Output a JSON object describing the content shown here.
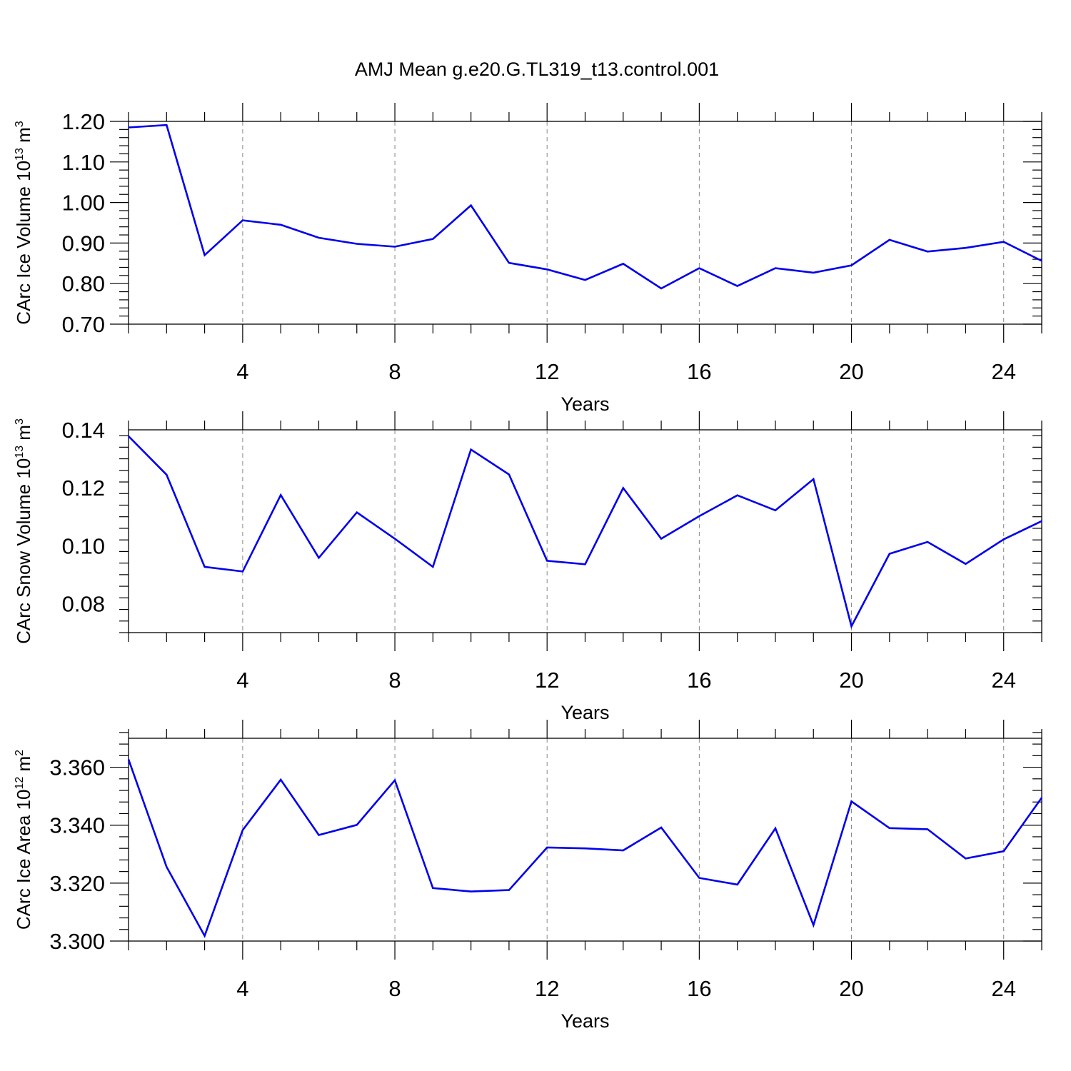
{
  "title": "AMJ Mean g.e20.G.TL319_t13.control.001",
  "colors": {
    "series": "#0000ee",
    "axis": "#000000",
    "grid": "#888888"
  },
  "chart_data": [
    {
      "type": "line",
      "title": "",
      "xlabel": "Years",
      "ylabel": {
        "main": "CArc Ice Volume 10",
        "exp": "13",
        "unit": " m",
        "unit_exp": "3"
      },
      "xlim": [
        1,
        25
      ],
      "ylim": [
        0.7,
        1.2
      ],
      "xticks": [
        4,
        8,
        12,
        16,
        20,
        24
      ],
      "xtick_labels": [
        "4",
        "8",
        "12",
        "16",
        "20",
        "24"
      ],
      "yticks": [
        0.7,
        0.8,
        0.9,
        1.0,
        1.1,
        1.2
      ],
      "ytick_labels": [
        "0.70",
        "0.80",
        "0.90",
        "1.00",
        "1.10",
        "1.20"
      ],
      "grid": "vertical dashed at major x ticks",
      "x": [
        1,
        2,
        3,
        4,
        5,
        6,
        7,
        8,
        9,
        10,
        11,
        12,
        13,
        14,
        15,
        16,
        17,
        18,
        19,
        20,
        21,
        22,
        23,
        24,
        25
      ],
      "values": [
        1.185,
        1.191,
        0.87,
        0.956,
        0.945,
        0.913,
        0.898,
        0.891,
        0.91,
        0.993,
        0.851,
        0.835,
        0.809,
        0.849,
        0.788,
        0.838,
        0.794,
        0.838,
        0.827,
        0.845,
        0.908,
        0.879,
        0.888,
        0.903,
        0.856
      ]
    },
    {
      "type": "line",
      "title": "",
      "xlabel": "Years",
      "ylabel": {
        "main": "CArc Snow Volume 10",
        "exp": "13",
        "unit": " m",
        "unit_exp": "3"
      },
      "xlim": [
        1,
        25
      ],
      "ylim": [
        0.07,
        0.14
      ],
      "xticks": [
        4,
        8,
        12,
        16,
        20,
        24
      ],
      "xtick_labels": [
        "4",
        "8",
        "12",
        "16",
        "20",
        "24"
      ],
      "yticks": [
        0.08,
        0.1,
        0.12,
        0.14
      ],
      "ytick_labels": [
        "0.08",
        "0.10",
        "0.12",
        "0.14"
      ],
      "grid": "vertical dashed at major x ticks",
      "x": [
        1,
        2,
        3,
        4,
        5,
        6,
        7,
        8,
        9,
        10,
        11,
        12,
        13,
        14,
        15,
        16,
        17,
        18,
        19,
        20,
        21,
        22,
        23,
        24,
        25
      ],
      "values": [
        0.1378,
        0.1245,
        0.0927,
        0.0911,
        0.1175,
        0.0958,
        0.1115,
        0.1024,
        0.0927,
        0.1332,
        0.1246,
        0.0948,
        0.0936,
        0.1199,
        0.1024,
        0.1102,
        0.1174,
        0.1122,
        0.123,
        0.0722,
        0.0972,
        0.1013,
        0.0937,
        0.1022,
        0.1085
      ]
    },
    {
      "type": "line",
      "title": "",
      "xlabel": "Years",
      "ylabel": {
        "main": "CArc Ice Area 10",
        "exp": "12",
        "unit": " m",
        "unit_exp": "2"
      },
      "xlim": [
        1,
        25
      ],
      "ylim": [
        3.3,
        3.37
      ],
      "xticks": [
        4,
        8,
        12,
        16,
        20,
        24
      ],
      "xtick_labels": [
        "4",
        "8",
        "12",
        "16",
        "20",
        "24"
      ],
      "yticks": [
        3.3,
        3.32,
        3.34,
        3.36
      ],
      "ytick_labels": [
        "3.300",
        "3.320",
        "3.340",
        "3.360"
      ],
      "grid": "vertical dashed at major x ticks",
      "x": [
        1,
        2,
        3,
        4,
        5,
        6,
        7,
        8,
        9,
        10,
        11,
        12,
        13,
        14,
        15,
        16,
        17,
        18,
        19,
        20,
        21,
        22,
        23,
        24,
        25
      ],
      "values": [
        3.3627,
        3.3256,
        3.3018,
        3.3383,
        3.3557,
        3.3366,
        3.3401,
        3.3555,
        3.3183,
        3.3171,
        3.3176,
        3.3323,
        3.332,
        3.3313,
        3.3392,
        3.3218,
        3.3195,
        3.3389,
        3.3055,
        3.3482,
        3.339,
        3.3386,
        3.3285,
        3.331,
        3.3495
      ]
    }
  ]
}
